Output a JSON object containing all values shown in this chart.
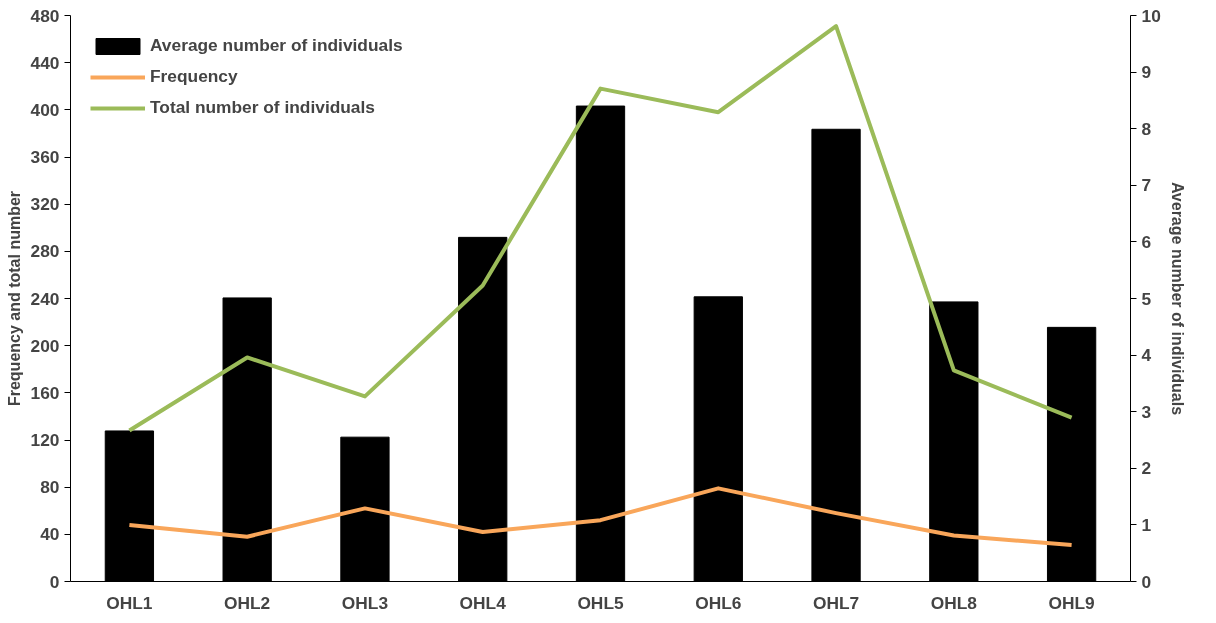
{
  "chart_data": {
    "type": "bar",
    "categories": [
      "OHL1",
      "OHL2",
      "OHL3",
      "OHL4",
      "OHL5",
      "OHL6",
      "OHL7",
      "OHL8",
      "OHL9"
    ],
    "ylabel": "Frequency and total number",
    "y2label": "Average number of individuals",
    "ylim": [
      0,
      480
    ],
    "yticks": [
      0,
      40,
      80,
      120,
      160,
      200,
      240,
      280,
      320,
      360,
      400,
      440,
      480
    ],
    "y2lim": [
      0,
      10
    ],
    "y2ticks": [
      0,
      1,
      2,
      3,
      4,
      5,
      6,
      7,
      8,
      9,
      10
    ],
    "grid": false,
    "legend": "top left",
    "series": [
      {
        "name": "Average number of individuals",
        "axis": "y2",
        "color": "#000000",
        "values": [
          2.66,
          5.01,
          2.55,
          6.08,
          8.4,
          5.03,
          7.99,
          4.94,
          4.49
        ]
      },
      {
        "name": "Frequency",
        "type": "line",
        "color": "#f9a65a",
        "values": [
          48,
          38,
          62,
          42,
          52,
          79,
          58,
          39,
          31
        ]
      },
      {
        "name": "Total number of individuals",
        "type": "line",
        "color": "#9bbb59",
        "values": [
          128,
          190,
          157,
          251,
          418,
          398,
          471,
          179,
          139
        ]
      }
    ]
  }
}
